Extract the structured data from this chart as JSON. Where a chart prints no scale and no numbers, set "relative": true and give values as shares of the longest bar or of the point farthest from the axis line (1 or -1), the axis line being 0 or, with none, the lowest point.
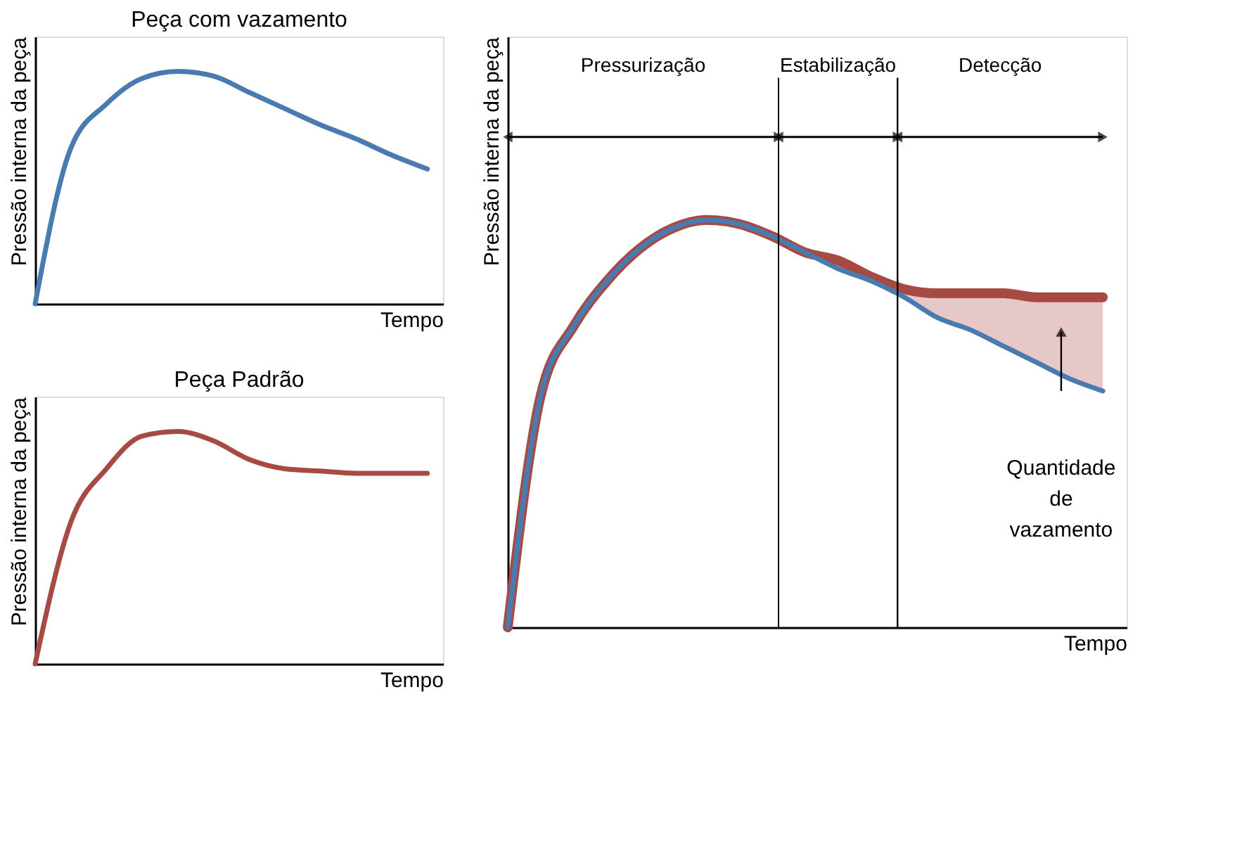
{
  "chart_data": [
    {
      "type": "line",
      "title": "Peça com vazamento",
      "xlabel": "Tempo",
      "ylabel": "Pressão interna da peça",
      "relative": true,
      "categories": [
        null,
        null,
        null,
        null,
        null,
        null,
        null,
        null,
        null,
        null,
        null,
        null
      ],
      "series": [
        {
          "color": "#4a7bb0",
          "values": [
            0,
            0.67,
            0.86,
            0.97,
            1.0,
            0.98,
            0.91,
            0.84,
            0.77,
            0.71,
            0.64,
            0.58
          ]
        }
      ]
    },
    {
      "type": "line",
      "title": "Peça Padrão",
      "xlabel": "Tempo",
      "ylabel": "Pressão interna da peça",
      "relative": true,
      "categories": [
        null,
        null,
        null,
        null,
        null,
        null,
        null,
        null,
        null,
        null,
        null,
        null
      ],
      "series": [
        {
          "color": "#a84a44",
          "values": [
            0,
            0.61,
            0.84,
            0.98,
            1.0,
            0.96,
            0.88,
            0.84,
            0.83,
            0.82,
            0.82,
            0.82
          ]
        }
      ]
    },
    {
      "type": "line",
      "xlabel": "Tempo",
      "ylabel": "Pressão interna da peça",
      "relative": true,
      "categories": [
        null,
        null,
        null,
        null,
        null,
        null,
        null,
        null,
        null,
        null,
        null,
        null,
        null,
        null,
        null,
        null,
        null,
        null,
        null
      ],
      "series": [
        {
          "color": "#a84a44",
          "values": [
            0,
            0.57,
            0.74,
            0.85,
            0.93,
            0.98,
            1.0,
            0.99,
            0.96,
            0.92,
            0.9,
            0.86,
            0.83,
            0.82,
            0.82,
            0.82,
            0.81,
            0.81,
            0.81
          ],
          "lower": [
            null,
            null,
            null,
            null,
            null,
            null,
            null,
            null,
            null,
            null,
            null,
            null,
            0.81,
            0.76,
            0.73,
            0.69,
            0.65,
            0.61,
            0.58
          ],
          "upper": [
            null,
            null,
            null,
            null,
            null,
            null,
            null,
            null,
            null,
            null,
            null,
            null,
            0.83,
            0.82,
            0.82,
            0.82,
            0.81,
            0.81,
            0.81
          ]
        },
        {
          "color": "#4a7bb0",
          "values": [
            0,
            0.57,
            0.74,
            0.85,
            0.93,
            0.98,
            1.0,
            0.99,
            0.96,
            0.92,
            0.88,
            0.85,
            0.81,
            0.76,
            0.73,
            0.69,
            0.65,
            0.61,
            0.58
          ]
        }
      ],
      "annotations": [
        "Pressurização",
        "Estabilização",
        "Detecção",
        "Quantidade de vazamento"
      ]
    }
  ]
}
